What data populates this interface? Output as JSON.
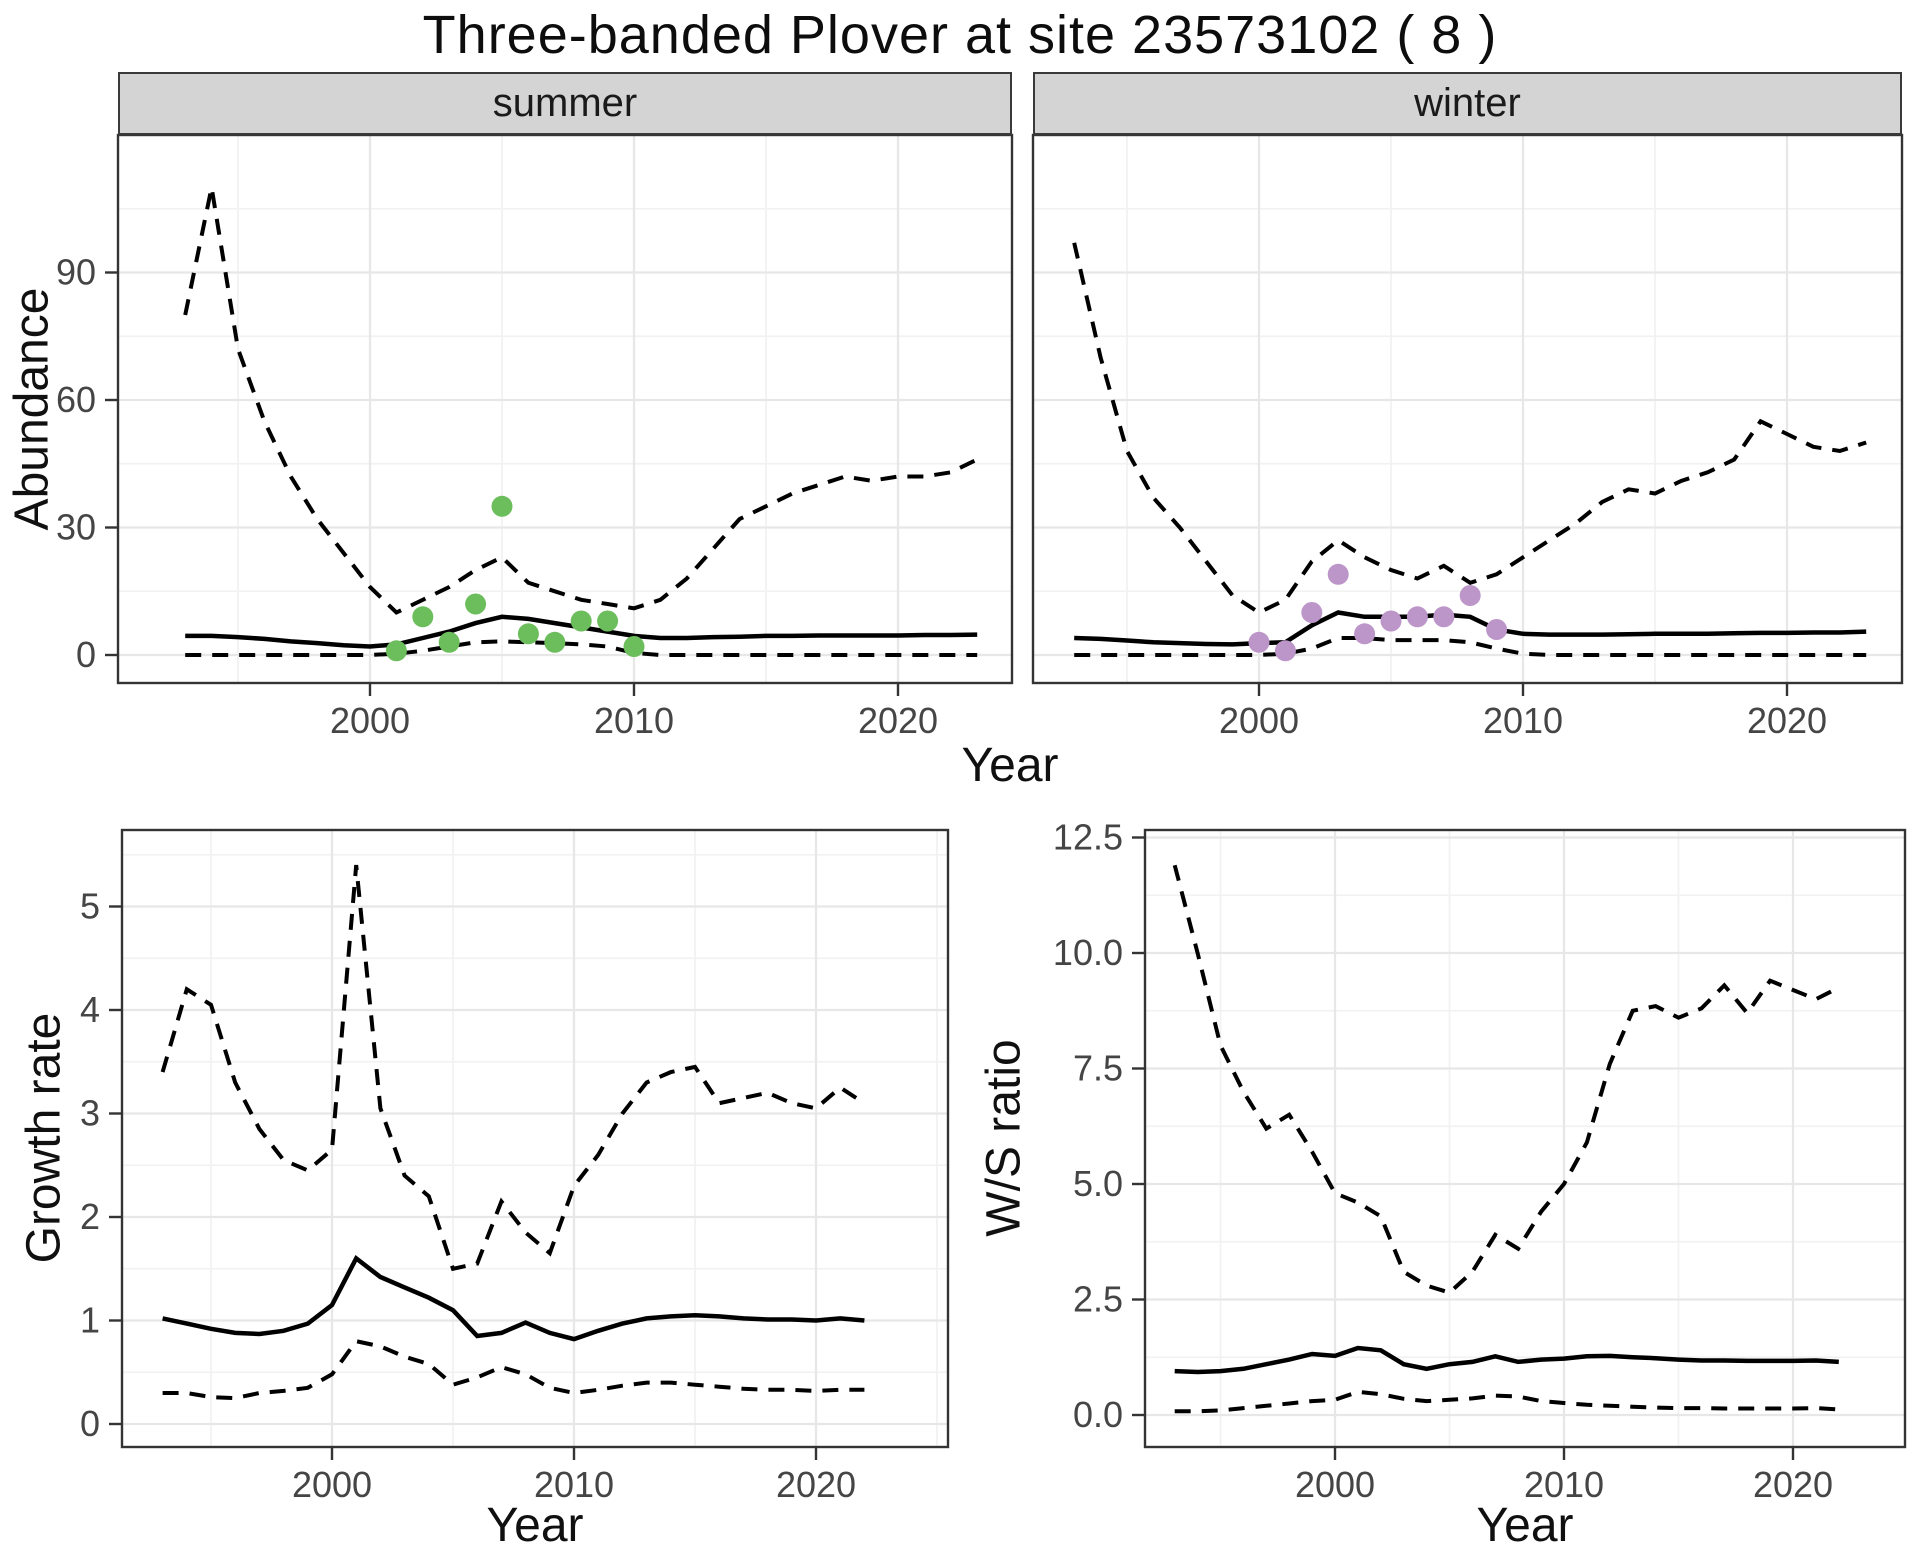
{
  "title": "Three-banded Plover at site 23573102 ( 8 )",
  "colors": {
    "summer_points": "#6cbe5c",
    "winter_points": "#bc95c9",
    "line": "#000000",
    "grid_major": "#e7e7e7",
    "grid_minor": "#f2f2f2",
    "strip_bg": "#d4d4d4",
    "panel_border": "#343434",
    "tick_text": "#454545"
  },
  "chart_data": [
    {
      "id": "abundance-summer",
      "type": "line",
      "facet_label": "summer",
      "ylabel": "Abundance",
      "xlabel": "Year",
      "legend_position": "none",
      "grid": true,
      "xlim": [
        1990.5,
        2024.3
      ],
      "ylim": [
        -4,
        122
      ],
      "x_axis": {
        "ticks": [
          2000,
          2010,
          2020
        ],
        "tick_labels": [
          "2000",
          "2010",
          "2020"
        ],
        "minor": [
          1995,
          2005,
          2015
        ]
      },
      "y_axis": {
        "ticks": [
          0,
          30,
          60,
          90
        ],
        "tick_labels": [
          "0",
          "30",
          "60",
          "90"
        ],
        "minor": [
          15,
          45,
          75,
          105
        ]
      },
      "years": [
        1993,
        1994,
        1995,
        1996,
        1997,
        1998,
        1999,
        2000,
        2001,
        2002,
        2003,
        2004,
        2005,
        2006,
        2007,
        2008,
        2009,
        2010,
        2011,
        2012,
        2013,
        2014,
        2015,
        2016,
        2017,
        2018,
        2019,
        2020,
        2021,
        2022,
        2023
      ],
      "series": {
        "upper_ci": [
          80,
          110,
          72,
          55,
          42,
          32,
          24,
          16,
          10,
          13,
          16,
          20,
          23,
          17,
          15,
          13,
          12,
          11,
          13,
          18,
          25,
          32,
          35,
          38,
          40,
          42,
          41,
          42,
          42,
          43,
          46
        ],
        "median": [
          4.5,
          4.5,
          4.2,
          3.8,
          3.2,
          2.8,
          2.3,
          2.0,
          2.5,
          4.0,
          5.5,
          7.5,
          9.0,
          8.5,
          7.5,
          6.5,
          5.5,
          4.5,
          4.0,
          4.0,
          4.2,
          4.3,
          4.5,
          4.5,
          4.6,
          4.6,
          4.6,
          4.6,
          4.7,
          4.7,
          4.8
        ],
        "lower_ci": [
          0,
          0,
          0,
          0,
          0,
          0,
          0,
          0,
          0.3,
          1.0,
          2.0,
          3.0,
          3.2,
          3.0,
          2.8,
          2.5,
          2.0,
          0.5,
          0,
          0,
          0,
          0,
          0,
          0,
          0,
          0,
          0,
          0,
          0,
          0,
          0
        ]
      },
      "points": {
        "color": "#6cbe5c",
        "years": [
          2001,
          2002,
          2003,
          2004,
          2005,
          2006,
          2007,
          2008,
          2009,
          2010
        ],
        "values": [
          1,
          9,
          3,
          12,
          35,
          5,
          3,
          8,
          8,
          2
        ]
      }
    },
    {
      "id": "abundance-winter",
      "type": "line",
      "facet_label": "winter",
      "grid": true,
      "xlim": [
        1990.5,
        2024.3
      ],
      "ylim": [
        -4,
        122
      ],
      "x_axis": {
        "ticks": [
          2000,
          2010,
          2020
        ],
        "tick_labels": [
          "2000",
          "2010",
          "2020"
        ],
        "minor": [
          1995,
          2005,
          2015
        ]
      },
      "y_axis": {
        "ticks": [
          0,
          30,
          60,
          90
        ],
        "tick_labels": [
          "0",
          "30",
          "60",
          "90"
        ],
        "minor": [
          15,
          45,
          75,
          105
        ]
      },
      "years": [
        1993,
        1994,
        1995,
        1996,
        1997,
        1998,
        1999,
        2000,
        2001,
        2002,
        2003,
        2004,
        2005,
        2006,
        2007,
        2008,
        2009,
        2010,
        2011,
        2012,
        2013,
        2014,
        2015,
        2016,
        2017,
        2018,
        2019,
        2020,
        2021,
        2022,
        2023
      ],
      "series": {
        "upper_ci": [
          97,
          70,
          48,
          37,
          30,
          22,
          14,
          10,
          13,
          22,
          27,
          23,
          20,
          18,
          21,
          17,
          19,
          23,
          27,
          31,
          36,
          39,
          38,
          41,
          43,
          46,
          55,
          52,
          49,
          48,
          50
        ],
        "median": [
          4,
          3.8,
          3.4,
          3.0,
          2.8,
          2.6,
          2.5,
          2.8,
          3.0,
          7.0,
          10,
          9,
          9,
          9,
          9.5,
          9,
          6,
          5,
          4.8,
          4.8,
          4.8,
          4.9,
          5,
          5,
          5,
          5.1,
          5.2,
          5.2,
          5.3,
          5.3,
          5.5
        ],
        "lower_ci": [
          0,
          0,
          0,
          0,
          0,
          0,
          0,
          0,
          0.3,
          1.5,
          4,
          4,
          3.5,
          3.5,
          3.5,
          3,
          1.5,
          0.3,
          0,
          0,
          0,
          0,
          0,
          0,
          0,
          0,
          0,
          0,
          0,
          0,
          0
        ]
      },
      "points": {
        "color": "#bc95c9",
        "years": [
          2000,
          2001,
          2002,
          2003,
          2004,
          2005,
          2006,
          2007,
          2008,
          2009
        ],
        "values": [
          3,
          1,
          10,
          19,
          5,
          8,
          9,
          9,
          14,
          6
        ]
      }
    },
    {
      "id": "growth-rate",
      "type": "line",
      "ylabel": "Growth rate",
      "xlabel": "Year",
      "grid": true,
      "xlim": [
        1990.6,
        2024.5
      ],
      "ylim": [
        -0.2,
        5.7
      ],
      "x_axis": {
        "ticks": [
          2000,
          2010,
          2020
        ],
        "tick_labels": [
          "2000",
          "2010",
          "2020"
        ],
        "minor": [
          1995,
          2005,
          2015,
          2025
        ]
      },
      "y_axis": {
        "ticks": [
          0,
          1,
          2,
          3,
          4,
          5
        ],
        "tick_labels": [
          "0",
          "1",
          "2",
          "3",
          "4",
          "5"
        ],
        "minor": [
          0.5,
          1.5,
          2.5,
          3.5,
          4.5,
          5.5
        ]
      },
      "years": [
        1993,
        1994,
        1995,
        1996,
        1997,
        1998,
        1999,
        2000,
        2001,
        2002,
        2003,
        2004,
        2005,
        2006,
        2007,
        2008,
        2009,
        2010,
        2011,
        2012,
        2013,
        2014,
        2015,
        2016,
        2017,
        2018,
        2019,
        2020,
        2021,
        2022
      ],
      "series": {
        "upper_ci": [
          3.4,
          4.2,
          4.05,
          3.3,
          2.85,
          2.55,
          2.45,
          2.65,
          5.4,
          3.05,
          2.4,
          2.2,
          1.5,
          1.55,
          2.15,
          1.85,
          1.65,
          2.3,
          2.6,
          3.0,
          3.3,
          3.4,
          3.45,
          3.1,
          3.15,
          3.2,
          3.1,
          3.05,
          3.25,
          3.1
        ],
        "median": [
          1.02,
          0.97,
          0.92,
          0.88,
          0.87,
          0.9,
          0.97,
          1.15,
          1.6,
          1.42,
          1.32,
          1.22,
          1.1,
          0.85,
          0.88,
          0.98,
          0.88,
          0.82,
          0.9,
          0.97,
          1.02,
          1.04,
          1.05,
          1.04,
          1.02,
          1.01,
          1.01,
          1.0,
          1.02,
          1.0
        ],
        "lower_ci": [
          0.3,
          0.3,
          0.26,
          0.25,
          0.3,
          0.32,
          0.35,
          0.48,
          0.8,
          0.75,
          0.65,
          0.58,
          0.38,
          0.45,
          0.55,
          0.48,
          0.35,
          0.3,
          0.33,
          0.37,
          0.4,
          0.4,
          0.38,
          0.36,
          0.34,
          0.33,
          0.33,
          0.32,
          0.33,
          0.33
        ]
      }
    },
    {
      "id": "ws-ratio",
      "type": "line",
      "ylabel": "W/S ratio",
      "xlabel": "Year",
      "grid": true,
      "xlim": [
        1990.6,
        2024.5
      ],
      "ylim": [
        -0.65,
        12.7
      ],
      "x_axis": {
        "ticks": [
          2000,
          2010,
          2020
        ],
        "tick_labels": [
          "2000",
          "2010",
          "2020"
        ],
        "minor": [
          1995,
          2005,
          2015
        ]
      },
      "y_axis": {
        "ticks": [
          0,
          2.5,
          5,
          7.5,
          10,
          12.5
        ],
        "tick_labels": [
          "0.0",
          "2.5",
          "5.0",
          "7.5",
          "10.0",
          "12.5"
        ],
        "minor": [
          1.25,
          3.75,
          6.25,
          8.75,
          11.25
        ]
      },
      "years": [
        1993,
        1994,
        1995,
        1996,
        1997,
        1998,
        1999,
        2000,
        2001,
        2002,
        2003,
        2004,
        2005,
        2006,
        2007,
        2008,
        2009,
        2010,
        2011,
        2012,
        2013,
        2014,
        2015,
        2016,
        2017,
        2018,
        2019,
        2020,
        2021,
        2022
      ],
      "series": {
        "upper_ci": [
          11.9,
          10.0,
          8.0,
          7.0,
          6.2,
          6.5,
          5.7,
          4.8,
          4.6,
          4.3,
          3.1,
          2.8,
          2.65,
          3.1,
          3.9,
          3.6,
          4.4,
          5.0,
          5.9,
          7.6,
          8.75,
          8.85,
          8.6,
          8.8,
          9.3,
          8.7,
          9.4,
          9.2,
          9.0,
          9.25
        ],
        "median": [
          0.95,
          0.93,
          0.95,
          1.0,
          1.1,
          1.2,
          1.32,
          1.28,
          1.45,
          1.4,
          1.1,
          1.0,
          1.1,
          1.15,
          1.27,
          1.15,
          1.2,
          1.22,
          1.27,
          1.28,
          1.25,
          1.23,
          1.2,
          1.18,
          1.18,
          1.17,
          1.17,
          1.17,
          1.18,
          1.15
        ],
        "lower_ci": [
          0.08,
          0.08,
          0.1,
          0.15,
          0.2,
          0.25,
          0.3,
          0.33,
          0.5,
          0.45,
          0.35,
          0.3,
          0.33,
          0.36,
          0.42,
          0.4,
          0.3,
          0.26,
          0.22,
          0.2,
          0.18,
          0.16,
          0.15,
          0.15,
          0.14,
          0.14,
          0.14,
          0.14,
          0.15,
          0.12
        ]
      }
    }
  ]
}
